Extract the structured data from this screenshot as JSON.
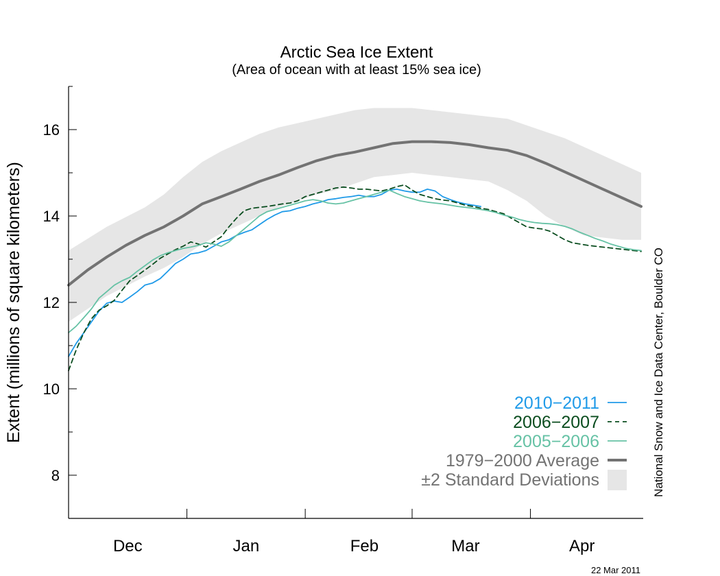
{
  "chart_data": {
    "type": "line",
    "title": "Arctic Sea Ice Extent",
    "subtitle": "(Area of ocean with at least 15% sea ice)",
    "ylabel": "Extent (millions of square kilometers)",
    "ylim": [
      7,
      17
    ],
    "yticks": [
      8,
      10,
      12,
      14,
      16
    ],
    "xlim": [
      0,
      150
    ],
    "month_labels": [
      {
        "label": "Dec",
        "x": 15.5
      },
      {
        "label": "Jan",
        "x": 46.5
      },
      {
        "label": "Feb",
        "x": 77.5
      },
      {
        "label": "Mar",
        "x": 104
      },
      {
        "label": "Apr",
        "x": 134.5
      }
    ],
    "month_boundaries": [
      31,
      62,
      90,
      121
    ],
    "credit": "National Snow and Ice Data Center, Boulder CO",
    "date": "22 Mar 2011",
    "std_band": {
      "name": "±2 Standard Deviations",
      "color": "#e6e6e6",
      "x": [
        0,
        10,
        20,
        25,
        30,
        35,
        40,
        45,
        50,
        55,
        60,
        65,
        70,
        75,
        80,
        85,
        90,
        95,
        100,
        105,
        110,
        115,
        120,
        125,
        130,
        135,
        140,
        145,
        150
      ],
      "upper": [
        13.2,
        13.75,
        14.2,
        14.5,
        14.9,
        15.25,
        15.5,
        15.7,
        15.9,
        16.05,
        16.15,
        16.25,
        16.35,
        16.45,
        16.5,
        16.5,
        16.5,
        16.45,
        16.4,
        16.35,
        16.3,
        16.25,
        16.1,
        15.95,
        15.8,
        15.6,
        15.4,
        15.2,
        15.0
      ],
      "lower": [
        11.55,
        12.15,
        12.6,
        12.8,
        13.05,
        13.35,
        13.6,
        13.8,
        14.0,
        14.2,
        14.35,
        14.5,
        14.6,
        14.75,
        14.9,
        14.95,
        15.0,
        14.95,
        14.9,
        14.85,
        14.8,
        14.6,
        14.35,
        14.0,
        13.75,
        13.55,
        13.5,
        13.45,
        13.45
      ]
    },
    "series": [
      {
        "name": "1979−2000 Average",
        "color": "#737373",
        "style": "thick",
        "x": [
          0,
          5,
          10,
          15,
          20,
          25,
          30,
          35,
          40,
          45,
          50,
          55,
          60,
          65,
          70,
          75,
          80,
          85,
          90,
          95,
          100,
          105,
          110,
          115,
          120,
          125,
          130,
          135,
          140,
          145,
          150
        ],
        "y": [
          12.4,
          12.75,
          13.05,
          13.32,
          13.55,
          13.75,
          14.0,
          14.28,
          14.45,
          14.62,
          14.8,
          14.95,
          15.12,
          15.28,
          15.4,
          15.48,
          15.58,
          15.68,
          15.72,
          15.72,
          15.7,
          15.65,
          15.58,
          15.52,
          15.4,
          15.22,
          15.02,
          14.82,
          14.62,
          14.42,
          14.22
        ]
      },
      {
        "name": "2010−2011",
        "color": "#1f9ae8",
        "style": "solid",
        "x": [
          0,
          2,
          4,
          6,
          8,
          10,
          12,
          14,
          16,
          18,
          20,
          22,
          24,
          26,
          28,
          30,
          32,
          34,
          36,
          38,
          40,
          42,
          44,
          46,
          48,
          50,
          52,
          54,
          56,
          58,
          60,
          62,
          64,
          66,
          68,
          70,
          72,
          74,
          76,
          78,
          80,
          82,
          84,
          86,
          88,
          90,
          92,
          94,
          96,
          98,
          100,
          102,
          104,
          106,
          108
        ],
        "y": [
          10.75,
          11.05,
          11.3,
          11.55,
          11.8,
          11.98,
          12.03,
          12.0,
          12.12,
          12.25,
          12.4,
          12.45,
          12.55,
          12.72,
          12.9,
          13.0,
          13.12,
          13.15,
          13.2,
          13.3,
          13.4,
          13.45,
          13.55,
          13.62,
          13.68,
          13.8,
          13.92,
          14.02,
          14.1,
          14.12,
          14.18,
          14.22,
          14.28,
          14.32,
          14.38,
          14.4,
          14.43,
          14.45,
          14.48,
          14.45,
          14.45,
          14.5,
          14.6,
          14.62,
          14.58,
          14.55,
          14.55,
          14.62,
          14.58,
          14.45,
          14.38,
          14.32,
          14.28,
          14.25,
          14.22
        ]
      },
      {
        "name": "2006−2007",
        "color": "#0a4d1f",
        "style": "dashed",
        "x": [
          0,
          2,
          4,
          6,
          8,
          10,
          12,
          14,
          16,
          18,
          20,
          22,
          24,
          26,
          28,
          30,
          32,
          34,
          36,
          38,
          40,
          42,
          44,
          46,
          48,
          50,
          52,
          54,
          56,
          58,
          60,
          62,
          64,
          66,
          68,
          70,
          72,
          74,
          76,
          78,
          80,
          82,
          84,
          86,
          88,
          90,
          92,
          94,
          96,
          98,
          100,
          102,
          104,
          106,
          108,
          110,
          112,
          114,
          116,
          118,
          120,
          122,
          124,
          126,
          128,
          130,
          132,
          134,
          136,
          138,
          140,
          142,
          144,
          146,
          148,
          150
        ],
        "y": [
          10.42,
          10.9,
          11.3,
          11.62,
          11.82,
          11.92,
          12.05,
          12.28,
          12.5,
          12.62,
          12.75,
          12.88,
          13.02,
          13.12,
          13.22,
          13.3,
          13.4,
          13.35,
          13.28,
          13.4,
          13.52,
          13.75,
          13.95,
          14.12,
          14.18,
          14.2,
          14.22,
          14.25,
          14.28,
          14.3,
          14.35,
          14.45,
          14.5,
          14.55,
          14.6,
          14.65,
          14.67,
          14.65,
          14.62,
          14.62,
          14.6,
          14.58,
          14.62,
          14.68,
          14.72,
          14.6,
          14.5,
          14.45,
          14.4,
          14.37,
          14.35,
          14.3,
          14.25,
          14.22,
          14.18,
          14.15,
          14.1,
          14.05,
          13.95,
          13.85,
          13.75,
          13.72,
          13.7,
          13.65,
          13.55,
          13.45,
          13.38,
          13.35,
          13.32,
          13.3,
          13.28,
          13.26,
          13.24,
          13.22,
          13.2,
          13.18
        ]
      },
      {
        "name": "2005−2006",
        "color": "#66c2a5",
        "style": "solid",
        "x": [
          0,
          2,
          4,
          6,
          8,
          10,
          12,
          14,
          16,
          18,
          20,
          22,
          24,
          26,
          28,
          30,
          32,
          34,
          36,
          38,
          40,
          42,
          44,
          46,
          48,
          50,
          52,
          54,
          56,
          58,
          60,
          62,
          64,
          66,
          68,
          70,
          72,
          74,
          76,
          78,
          80,
          82,
          84,
          86,
          88,
          90,
          92,
          94,
          96,
          98,
          100,
          102,
          104,
          106,
          108,
          110,
          112,
          114,
          116,
          118,
          120,
          122,
          124,
          126,
          128,
          130,
          132,
          134,
          136,
          138,
          140,
          142,
          144,
          146,
          148,
          150
        ],
        "y": [
          11.3,
          11.45,
          11.65,
          11.85,
          12.1,
          12.25,
          12.4,
          12.5,
          12.58,
          12.72,
          12.85,
          12.98,
          13.08,
          13.15,
          13.2,
          13.25,
          13.28,
          13.32,
          13.38,
          13.35,
          13.3,
          13.4,
          13.55,
          13.7,
          13.85,
          14.0,
          14.1,
          14.15,
          14.2,
          14.25,
          14.3,
          14.35,
          14.38,
          14.35,
          14.3,
          14.28,
          14.3,
          14.35,
          14.4,
          14.45,
          14.5,
          14.55,
          14.6,
          14.52,
          14.45,
          14.4,
          14.35,
          14.32,
          14.3,
          14.28,
          14.25,
          14.22,
          14.2,
          14.18,
          14.15,
          14.12,
          14.08,
          14.02,
          13.98,
          13.92,
          13.88,
          13.85,
          13.83,
          13.82,
          13.8,
          13.76,
          13.7,
          13.62,
          13.55,
          13.48,
          13.42,
          13.35,
          13.3,
          13.25,
          13.22,
          13.2
        ]
      }
    ]
  }
}
